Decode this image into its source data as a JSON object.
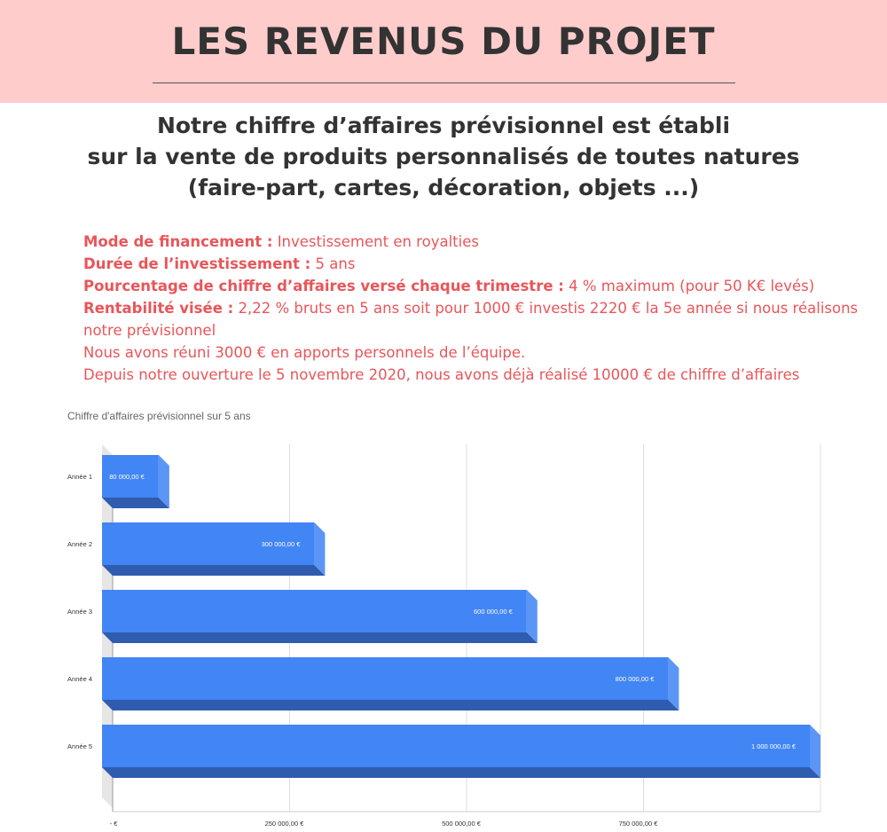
{
  "header": {
    "title": "LES REVENUS DU PROJET"
  },
  "intro": {
    "lines": [
      "Notre chiffre d’affaires prévisionnel est établi",
      "sur la vente de produits personnalisés de toutes natures",
      "(faire-part, cartes, décoration, objets ...)"
    ]
  },
  "details": {
    "financement_label": "Mode de financement :",
    "financement_value": "Investissement en royalties",
    "duree_label": "Durée de l’investissement :",
    "duree_value": "5 ans",
    "pourcentage_label": "Pourcentage de chiffre d’affaires versé chaque trimestre :",
    "pourcentage_value": "4 % maximum (pour 50 K€ levés)",
    "rentabilite_label": "Rentabilité visée :",
    "rentabilite_value": "2,22 % bruts en 5 ans soit pour 1000 € investis 2220 € la 5e année si nous réalisons",
    "rentabilite_value_cont": "notre prévisionnel",
    "apports": "Nous avons réuni 3000 € en apports personnels de l’équipe.",
    "ouverture": "Depuis notre ouverture le 5 novembre 2020, nous avons déjà réalisé 10000 € de chiffre d’affaires"
  },
  "chart_data": {
    "type": "bar",
    "orientation": "horizontal",
    "title": "Chiffre d'affaires prévisionnel sur 5 ans",
    "categories": [
      "Année 1",
      "Année 2",
      "Année 3",
      "Année 4",
      "Année 5"
    ],
    "values": [
      80000,
      300000,
      600000,
      800000,
      1000000
    ],
    "value_labels": [
      "80 000,00 €",
      "300 000,00 €",
      "600 000,00 €",
      "800 000,00 €",
      "1 000 000,00 €"
    ],
    "xlim": [
      0,
      1000000
    ],
    "xticks": [
      0,
      250000,
      500000,
      750000
    ],
    "xtick_labels": [
      "-  €",
      "250 000,00 €",
      "500 000,00 €",
      "750 000,00 €"
    ],
    "grid": true,
    "style": "3d",
    "colors": {
      "bar_front": "#4285f4",
      "bar_side": "#5b96f7",
      "bar_bottom": "#2f5cae",
      "grid": "#dddddd",
      "floor": "#e6e6e6"
    }
  }
}
